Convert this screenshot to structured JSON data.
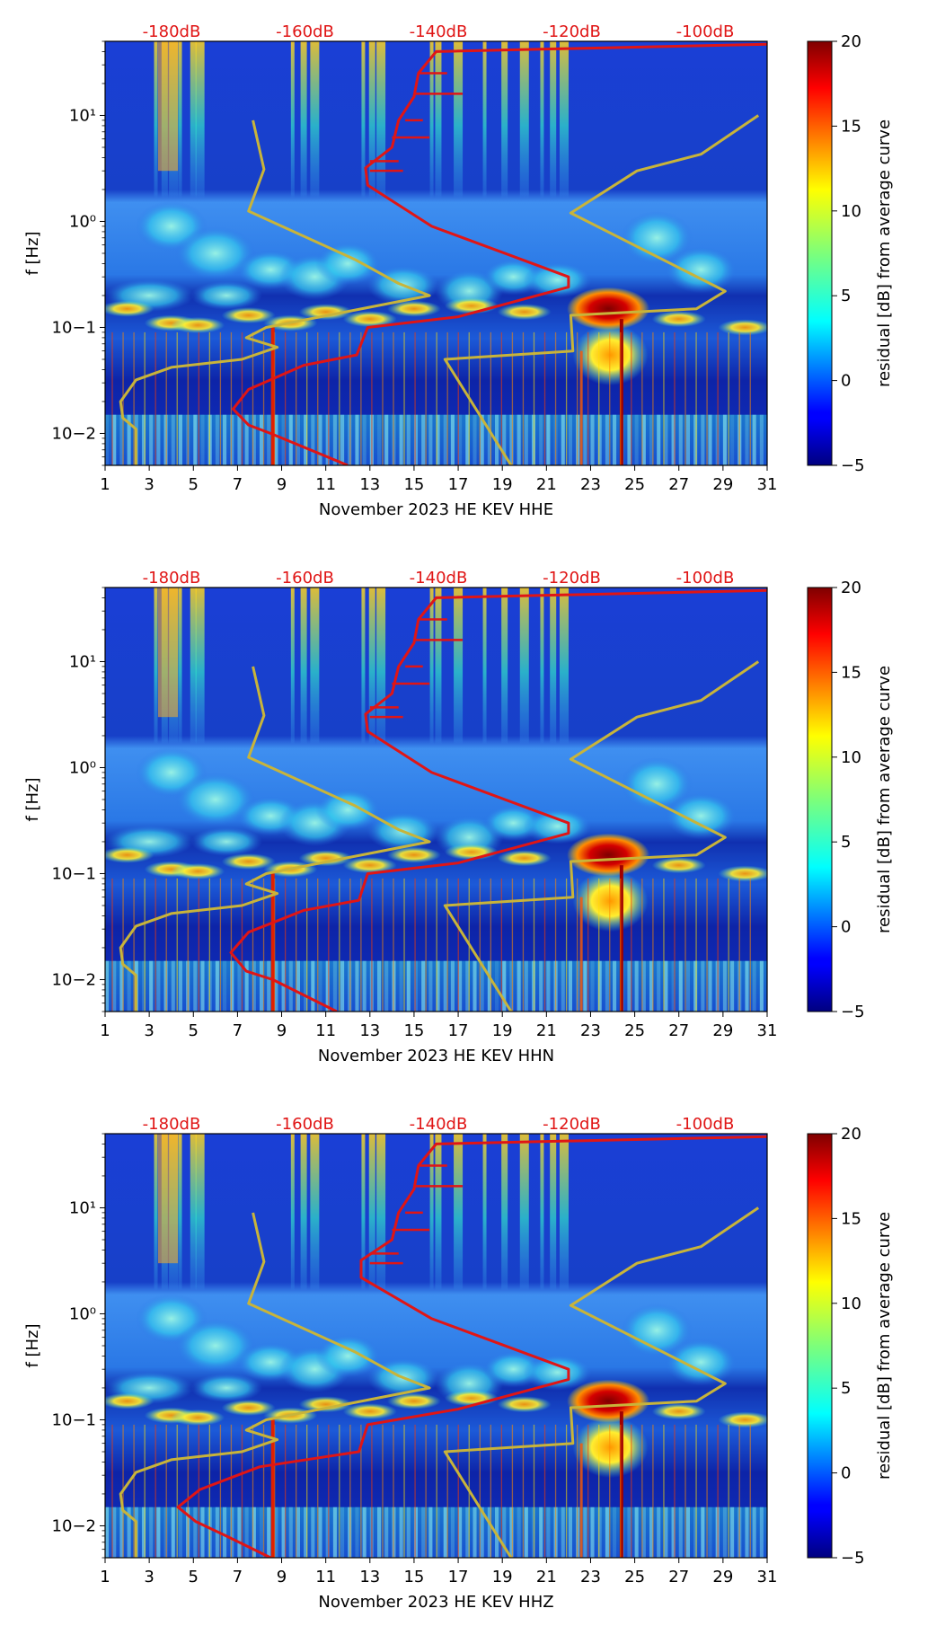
{
  "chart_data": [
    {
      "type": "heatmap",
      "xlabel": "November 2023 HE KEV  HHE",
      "ylabel": "f [Hz]",
      "xlim": [
        1,
        31
      ],
      "ylim": [
        0.005,
        50
      ],
      "yscale": "log",
      "x_ticks": [
        "1",
        "3",
        "5",
        "7",
        "9",
        "11",
        "13",
        "15",
        "17",
        "19",
        "21",
        "23",
        "25",
        "27",
        "29",
        "31"
      ],
      "y_ticks": [
        "10−2",
        "10−1",
        "10⁰",
        "10¹"
      ],
      "db_labels": [
        "-180dB",
        "-160dB",
        "-140dB",
        "-120dB",
        "-100dB"
      ],
      "colorbar": {
        "label": "residual [dB] from average curve",
        "min": -5,
        "max": 20,
        "ticks": [
          "−5",
          "0",
          "5",
          "10",
          "15",
          "20"
        ]
      },
      "noise_model_curves": [
        {
          "name": "yellow",
          "color": "#c8b43a",
          "points": [
            [
              2.4,
              0.005
            ],
            [
              2.4,
              0.011
            ],
            [
              1.8,
              0.014
            ],
            [
              1.7,
              0.02
            ],
            [
              2.4,
              0.032
            ],
            [
              4,
              0.042
            ],
            [
              7.2,
              0.05
            ],
            [
              8.8,
              0.065
            ],
            [
              7.4,
              0.08
            ],
            [
              8.3,
              0.1
            ],
            [
              15.7,
              0.2
            ],
            [
              14.3,
              0.26
            ],
            [
              12.3,
              0.44
            ],
            [
              7.5,
              1.25
            ],
            [
              8.2,
              3.1
            ],
            [
              7.7,
              9
            ]
          ]
        },
        {
          "name": "red",
          "color": "#e01515",
          "points": [
            [
              12,
              0.005
            ],
            [
              8.5,
              0.01
            ],
            [
              7.5,
              0.012
            ],
            [
              6.8,
              0.017
            ],
            [
              7.5,
              0.026
            ],
            [
              10,
              0.044
            ],
            [
              12.4,
              0.055
            ],
            [
              12.9,
              0.1
            ],
            [
              17,
              0.126
            ],
            [
              22,
              0.24
            ],
            [
              22,
              0.3
            ],
            [
              15.8,
              0.9
            ],
            [
              12.9,
              2.2
            ],
            [
              12.8,
              3.2
            ],
            [
              14,
              5
            ],
            [
              14.3,
              9
            ],
            [
              15,
              15
            ],
            [
              15.2,
              25
            ],
            [
              16,
              40
            ],
            [
              31,
              47
            ]
          ]
        },
        {
          "name": "yellow-right",
          "color": "#c8b43a",
          "points": [
            [
              19.4,
              0.005
            ],
            [
              16.4,
              0.05
            ],
            [
              22.2,
              0.06
            ],
            [
              22.1,
              0.13
            ],
            [
              27.8,
              0.15
            ],
            [
              29.1,
              0.22
            ],
            [
              22.1,
              1.2
            ],
            [
              25.1,
              3
            ],
            [
              28,
              4.3
            ],
            [
              30.6,
              10
            ]
          ]
        }
      ]
    },
    {
      "type": "heatmap",
      "xlabel": "November 2023 HE KEV  HHN",
      "ylabel": "f [Hz]",
      "xlim": [
        1,
        31
      ],
      "ylim": [
        0.005,
        50
      ],
      "yscale": "log",
      "x_ticks": [
        "1",
        "3",
        "5",
        "7",
        "9",
        "11",
        "13",
        "15",
        "17",
        "19",
        "21",
        "23",
        "25",
        "27",
        "29",
        "31"
      ],
      "y_ticks": [
        "10−2",
        "10−1",
        "10⁰",
        "10¹"
      ],
      "db_labels": [
        "-180dB",
        "-160dB",
        "-140dB",
        "-120dB",
        "-100dB"
      ],
      "colorbar": {
        "label": "residual [dB] from average curve",
        "min": -5,
        "max": 20,
        "ticks": [
          "−5",
          "0",
          "5",
          "10",
          "15",
          "20"
        ]
      },
      "noise_model_curves": [
        {
          "name": "yellow",
          "color": "#c8b43a",
          "points": [
            [
              2.4,
              0.005
            ],
            [
              2.4,
              0.011
            ],
            [
              1.8,
              0.014
            ],
            [
              1.7,
              0.02
            ],
            [
              2.4,
              0.032
            ],
            [
              4,
              0.042
            ],
            [
              7.2,
              0.05
            ],
            [
              8.8,
              0.065
            ],
            [
              7.4,
              0.08
            ],
            [
              8.3,
              0.1
            ],
            [
              15.7,
              0.2
            ],
            [
              14.3,
              0.26
            ],
            [
              12.3,
              0.44
            ],
            [
              7.5,
              1.25
            ],
            [
              8.2,
              3.1
            ],
            [
              7.7,
              9
            ]
          ]
        },
        {
          "name": "red",
          "color": "#e01515",
          "points": [
            [
              11.5,
              0.005
            ],
            [
              8.6,
              0.01
            ],
            [
              7.4,
              0.012
            ],
            [
              6.7,
              0.018
            ],
            [
              7.5,
              0.028
            ],
            [
              10,
              0.045
            ],
            [
              12.5,
              0.056
            ],
            [
              12.9,
              0.1
            ],
            [
              17,
              0.126
            ],
            [
              22,
              0.24
            ],
            [
              22,
              0.3
            ],
            [
              15.8,
              0.9
            ],
            [
              12.9,
              2.2
            ],
            [
              12.8,
              3.2
            ],
            [
              14,
              5
            ],
            [
              14.3,
              9
            ],
            [
              15,
              15
            ],
            [
              15.2,
              25
            ],
            [
              16,
              40
            ],
            [
              31,
              47
            ]
          ]
        },
        {
          "name": "yellow-right",
          "color": "#c8b43a",
          "points": [
            [
              19.4,
              0.005
            ],
            [
              16.4,
              0.05
            ],
            [
              22.2,
              0.06
            ],
            [
              22.1,
              0.13
            ],
            [
              27.8,
              0.15
            ],
            [
              29.1,
              0.22
            ],
            [
              22.1,
              1.2
            ],
            [
              25.1,
              3
            ],
            [
              28,
              4.3
            ],
            [
              30.6,
              10
            ]
          ]
        }
      ]
    },
    {
      "type": "heatmap",
      "xlabel": "November 2023 HE KEV  HHZ",
      "ylabel": "f [Hz]",
      "xlim": [
        1,
        31
      ],
      "ylim": [
        0.005,
        50
      ],
      "yscale": "log",
      "x_ticks": [
        "1",
        "3",
        "5",
        "7",
        "9",
        "11",
        "13",
        "15",
        "17",
        "19",
        "21",
        "23",
        "25",
        "27",
        "29",
        "31"
      ],
      "y_ticks": [
        "10−2",
        "10−1",
        "10⁰",
        "10¹"
      ],
      "db_labels": [
        "-180dB",
        "-160dB",
        "-140dB",
        "-120dB",
        "-100dB"
      ],
      "colorbar": {
        "label": "residual [dB] from average curve",
        "min": -5,
        "max": 20,
        "ticks": [
          "−5",
          "0",
          "5",
          "10",
          "15",
          "20"
        ]
      },
      "noise_model_curves": [
        {
          "name": "yellow",
          "color": "#c8b43a",
          "points": [
            [
              2.4,
              0.005
            ],
            [
              2.4,
              0.011
            ],
            [
              1.8,
              0.014
            ],
            [
              1.7,
              0.02
            ],
            [
              2.4,
              0.032
            ],
            [
              4,
              0.042
            ],
            [
              7.2,
              0.05
            ],
            [
              8.8,
              0.065
            ],
            [
              7.4,
              0.08
            ],
            [
              8.3,
              0.1
            ],
            [
              15.7,
              0.2
            ],
            [
              14.3,
              0.26
            ],
            [
              12.3,
              0.44
            ],
            [
              7.5,
              1.25
            ],
            [
              8.2,
              3.1
            ],
            [
              7.7,
              9
            ]
          ]
        },
        {
          "name": "red",
          "color": "#e01515",
          "points": [
            [
              8.5,
              0.005
            ],
            [
              6.5,
              0.008
            ],
            [
              5.1,
              0.011
            ],
            [
              4.3,
              0.015
            ],
            [
              5.3,
              0.022
            ],
            [
              8,
              0.036
            ],
            [
              12.5,
              0.05
            ],
            [
              12.9,
              0.09
            ],
            [
              17,
              0.126
            ],
            [
              22,
              0.24
            ],
            [
              22,
              0.3
            ],
            [
              15.8,
              0.9
            ],
            [
              12.6,
              2.2
            ],
            [
              12.6,
              3.2
            ],
            [
              14,
              5
            ],
            [
              14.3,
              9
            ],
            [
              15,
              15
            ],
            [
              15.2,
              25
            ],
            [
              16,
              40
            ],
            [
              31,
              47
            ]
          ]
        },
        {
          "name": "yellow-right",
          "color": "#c8b43a",
          "points": [
            [
              19.4,
              0.005
            ],
            [
              16.4,
              0.05
            ],
            [
              22.2,
              0.06
            ],
            [
              22.1,
              0.13
            ],
            [
              27.8,
              0.15
            ],
            [
              29.1,
              0.22
            ],
            [
              22.1,
              1.2
            ],
            [
              25.1,
              3
            ],
            [
              28,
              4.3
            ],
            [
              30.6,
              10
            ]
          ]
        }
      ]
    }
  ]
}
